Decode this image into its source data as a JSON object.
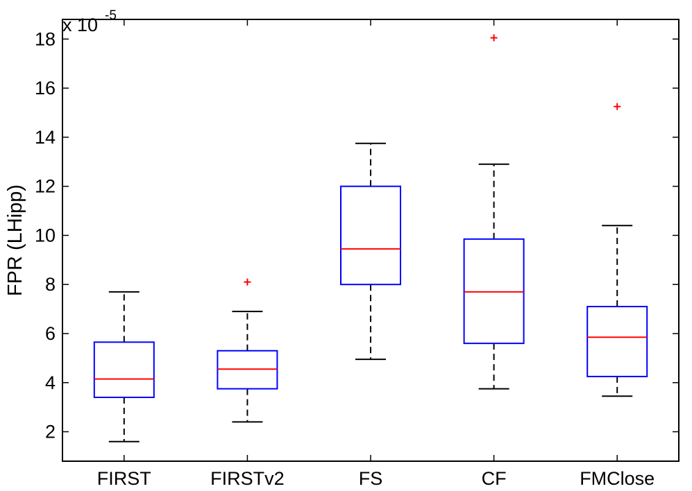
{
  "chart_data": {
    "type": "boxplot",
    "ylabel": "FPR (LHipp)",
    "exponent_label": "x 10",
    "exponent_power": "-5",
    "ylim": [
      0.8,
      18.8
    ],
    "yticks": [
      2,
      4,
      6,
      8,
      10,
      12,
      14,
      16,
      18
    ],
    "ytick_labels": [
      "2",
      "4",
      "6",
      "8",
      "10",
      "12",
      "14",
      "16",
      "18"
    ],
    "categories": [
      "FIRST",
      "FIRSTv2",
      "FS",
      "CF",
      "FMClose"
    ],
    "boxes": [
      {
        "name": "FIRST",
        "whisker_low": 1.6,
        "q1": 3.4,
        "median": 4.15,
        "q3": 5.65,
        "whisker_high": 7.7,
        "outliers": []
      },
      {
        "name": "FIRSTv2",
        "whisker_low": 2.4,
        "q1": 3.75,
        "median": 4.55,
        "q3": 5.3,
        "whisker_high": 6.9,
        "outliers": [
          8.1
        ]
      },
      {
        "name": "FS",
        "whisker_low": 4.95,
        "q1": 8.0,
        "median": 9.45,
        "q3": 12.0,
        "whisker_high": 13.75,
        "outliers": []
      },
      {
        "name": "CF",
        "whisker_low": 3.75,
        "q1": 5.6,
        "median": 7.7,
        "q3": 9.85,
        "whisker_high": 12.9,
        "outliers": [
          18.05
        ]
      },
      {
        "name": "FMClose",
        "whisker_low": 3.45,
        "q1": 4.25,
        "median": 5.85,
        "q3": 7.1,
        "whisker_high": 10.4,
        "outliers": [
          15.25
        ]
      }
    ],
    "colors": {
      "box": "#0000ff",
      "median": "#ff0000",
      "whisker": "#000000",
      "outlier": "#ff0000",
      "axes": "#000000"
    }
  }
}
